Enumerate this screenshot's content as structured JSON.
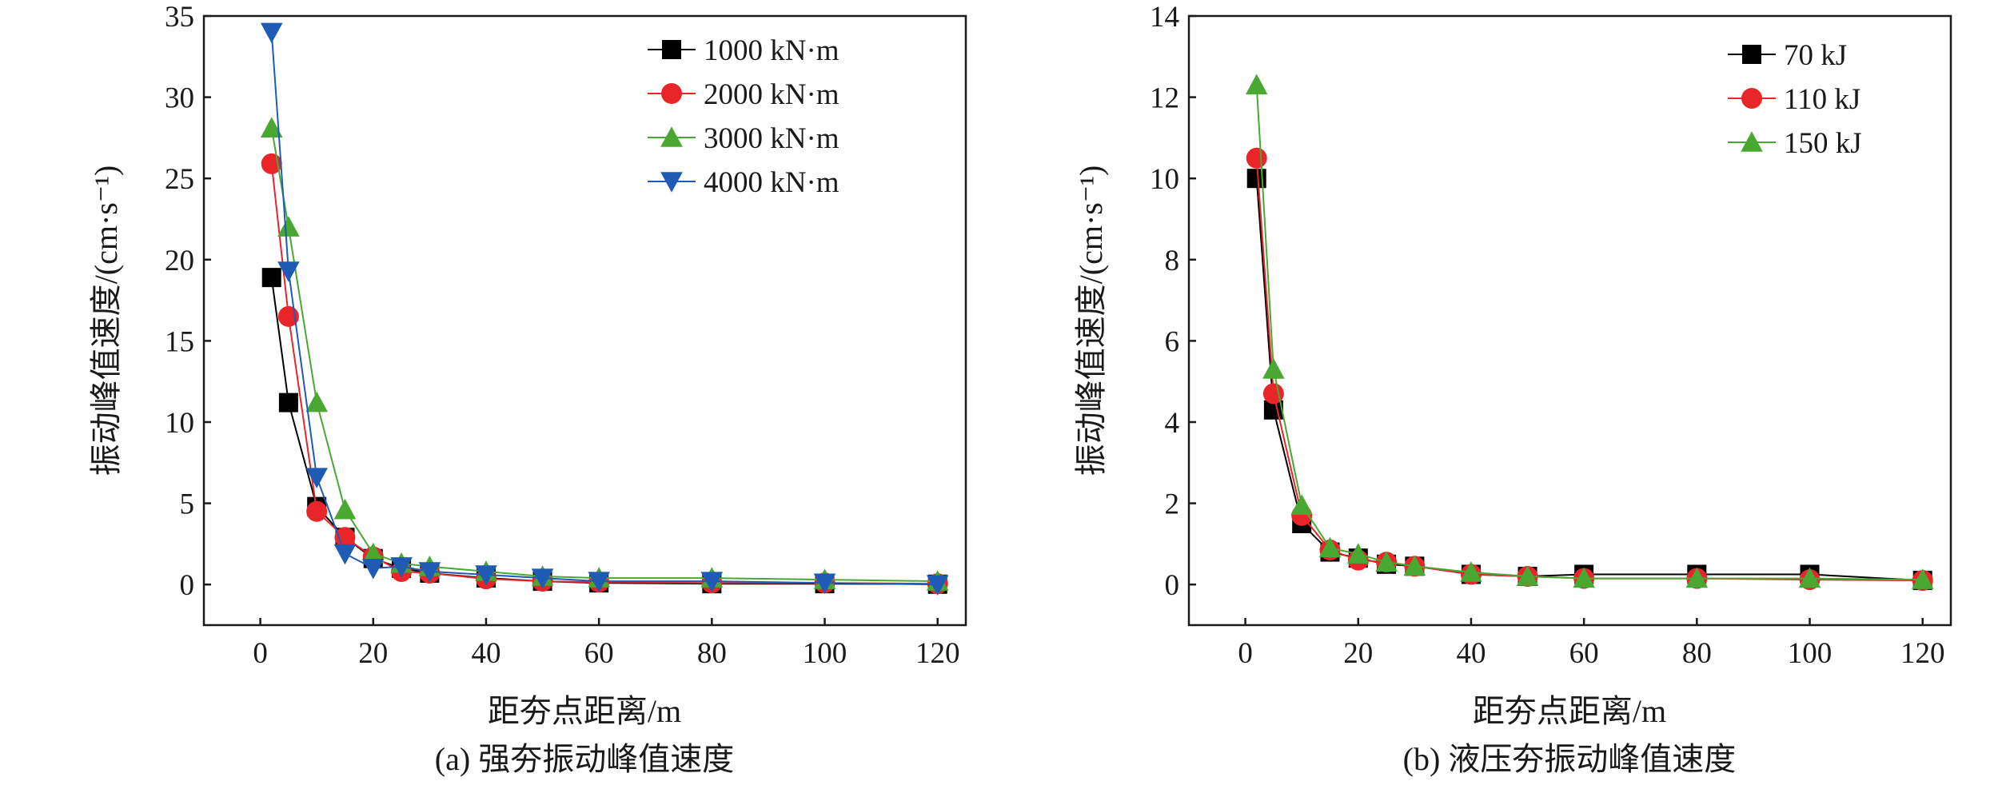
{
  "chart_data": [
    {
      "type": "line",
      "caption": "(a) 强夯振动峰值速度",
      "xlabel": "距夯点距离/m",
      "ylabel": "振动峰值速度/(cm·s⁻¹)",
      "xlim": [
        -10,
        125
      ],
      "ylim": [
        -2.5,
        35
      ],
      "xticks": [
        0,
        20,
        40,
        60,
        80,
        100,
        120
      ],
      "yticks": [
        0,
        5,
        10,
        15,
        20,
        25,
        30,
        35
      ],
      "grid": false,
      "legend_position": "top-right",
      "series": [
        {
          "name": "1000 kN·m",
          "color": "#000000",
          "marker": "square",
          "x": [
            2,
            5,
            10,
            15,
            20,
            25,
            30,
            40,
            50,
            60,
            80,
            100,
            120
          ],
          "y": [
            18.9,
            11.2,
            4.8,
            2.9,
            1.6,
            1.0,
            0.7,
            0.4,
            0.2,
            0.1,
            0.05,
            0.05,
            0.02
          ]
        },
        {
          "name": "2000 kN·m",
          "color": "#e8262a",
          "marker": "circle",
          "x": [
            2,
            5,
            10,
            15,
            20,
            25,
            30,
            40,
            50,
            60,
            80,
            100,
            120
          ],
          "y": [
            25.9,
            16.5,
            4.5,
            2.9,
            1.7,
            0.8,
            0.7,
            0.35,
            0.2,
            0.15,
            0.1,
            0.1,
            0.05
          ]
        },
        {
          "name": "3000 kN·m",
          "color": "#4aa832",
          "marker": "triangle-up",
          "x": [
            2,
            5,
            10,
            15,
            20,
            25,
            30,
            40,
            50,
            60,
            80,
            100,
            120
          ],
          "y": [
            28.1,
            22.0,
            11.2,
            4.6,
            1.9,
            1.3,
            1.1,
            0.8,
            0.5,
            0.4,
            0.4,
            0.3,
            0.2
          ]
        },
        {
          "name": "4000 kN·m",
          "color": "#1f5bb5",
          "marker": "triangle-down",
          "x": [
            2,
            5,
            10,
            15,
            20,
            25,
            30,
            40,
            50,
            60,
            80,
            100,
            120
          ],
          "y": [
            34.0,
            19.3,
            6.6,
            1.9,
            1.0,
            1.1,
            0.8,
            0.6,
            0.4,
            0.2,
            0.2,
            0.1,
            0.0
          ]
        }
      ]
    },
    {
      "type": "line",
      "caption": "(b) 液压夯振动峰值速度",
      "xlabel": "距夯点距离/m",
      "ylabel": "振动峰值速度/(cm·s⁻¹)",
      "xlim": [
        -10,
        125
      ],
      "ylim": [
        -1,
        14
      ],
      "xticks": [
        0,
        20,
        40,
        60,
        80,
        100,
        120
      ],
      "yticks": [
        0,
        2,
        4,
        6,
        8,
        10,
        12,
        14
      ],
      "grid": false,
      "legend_position": "top-right",
      "series": [
        {
          "name": "70 kJ",
          "color": "#000000",
          "marker": "square",
          "x": [
            2,
            5,
            10,
            15,
            20,
            25,
            30,
            40,
            50,
            60,
            80,
            100,
            120
          ],
          "y": [
            10.0,
            4.3,
            1.5,
            0.8,
            0.65,
            0.5,
            0.45,
            0.25,
            0.2,
            0.25,
            0.25,
            0.25,
            0.1
          ]
        },
        {
          "name": "110 kJ",
          "color": "#e8262a",
          "marker": "circle",
          "x": [
            2,
            5,
            10,
            15,
            20,
            25,
            30,
            40,
            50,
            60,
            80,
            100,
            120
          ],
          "y": [
            10.5,
            4.7,
            1.7,
            0.85,
            0.6,
            0.55,
            0.45,
            0.25,
            0.2,
            0.15,
            0.15,
            0.12,
            0.1
          ]
        },
        {
          "name": "150 kJ",
          "color": "#4aa832",
          "marker": "triangle-up",
          "x": [
            2,
            5,
            10,
            15,
            20,
            25,
            30,
            40,
            50,
            60,
            80,
            100,
            120
          ],
          "y": [
            12.3,
            5.3,
            1.95,
            0.9,
            0.75,
            0.55,
            0.45,
            0.3,
            0.2,
            0.15,
            0.15,
            0.15,
            0.12
          ]
        }
      ]
    }
  ]
}
